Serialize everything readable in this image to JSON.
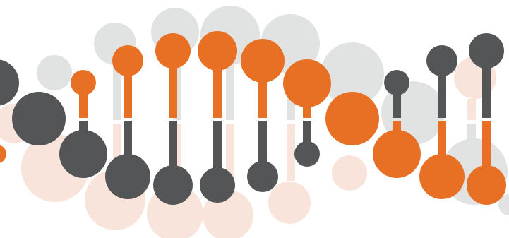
{
  "illustration": {
    "name": "dna-double-helix-graphic",
    "colors": {
      "orange": "#E87025",
      "dark_gray": "#545557",
      "light_gray": "#E1E2E2",
      "peach": "#F9E4DB",
      "background": "#FFFFFF"
    }
  }
}
